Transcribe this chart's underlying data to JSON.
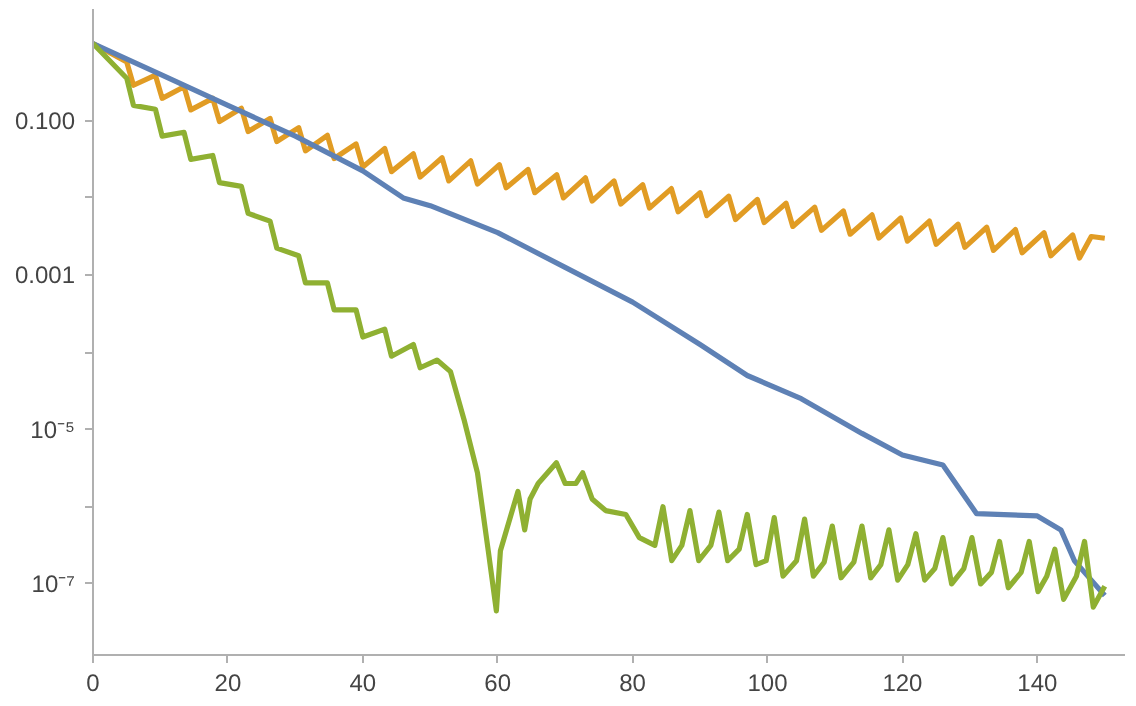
{
  "chart_data": {
    "type": "line",
    "log": "y",
    "xlim": [
      0,
      153
    ],
    "ylim": [
      1.2e-08,
      2.8
    ],
    "xticks": [
      0,
      20,
      40,
      60,
      80,
      100,
      120,
      140
    ],
    "yticks": [
      {
        "value": 0.1,
        "label": "0.100"
      },
      {
        "value": 0.01,
        "label": null
      },
      {
        "value": 0.001,
        "label": "0.001"
      },
      {
        "value": 0.0001,
        "label": null
      },
      {
        "value": 1e-05,
        "label": "10⁻⁵"
      },
      {
        "value": 1e-06,
        "label": null
      },
      {
        "value": 1e-07,
        "label": "10⁻⁷"
      }
    ],
    "grid": false,
    "marker": "none",
    "line_style": "solid",
    "series": [
      {
        "color": "#e19c24",
        "x": [
          0,
          5,
          6,
          9.25,
          10.25,
          13.5,
          14.5,
          17.75,
          18.75,
          22,
          23,
          26.25,
          27.25,
          30.5,
          31.5,
          34.75,
          35.75,
          39,
          40,
          43.25,
          44.25,
          47.5,
          48.5,
          51.75,
          52.75,
          56,
          57,
          60.25,
          61.25,
          64.5,
          65.5,
          68.75,
          69.75,
          73,
          74,
          77.25,
          78.25,
          81.5,
          82.5,
          85.75,
          86.75,
          90,
          91,
          94.25,
          95.25,
          98.5,
          99.5,
          102.75,
          103.75,
          107,
          108,
          111.25,
          112.25,
          115.5,
          116.5,
          119.75,
          120.75,
          124,
          125,
          128.25,
          129.25,
          132.5,
          133.5,
          136.75,
          137.75,
          141,
          142,
          145.25,
          146.25,
          148,
          150
        ],
        "values": [
          1,
          0.575,
          0.288,
          0.389,
          0.195,
          0.275,
          0.138,
          0.195,
          0.0977,
          0.145,
          0.0724,
          0.107,
          0.0537,
          0.0813,
          0.0407,
          0.0646,
          0.0324,
          0.0501,
          0.0251,
          0.0437,
          0.0219,
          0.0372,
          0.0186,
          0.0331,
          0.0166,
          0.0302,
          0.0151,
          0.0269,
          0.0135,
          0.0234,
          0.0117,
          0.02,
          0.01,
          0.0182,
          0.00912,
          0.0166,
          0.00832,
          0.0148,
          0.00741,
          0.0132,
          0.00661,
          0.0117,
          0.00589,
          0.0105,
          0.00525,
          0.00955,
          0.00479,
          0.00851,
          0.00427,
          0.00759,
          0.0038,
          0.00676,
          0.00339,
          0.00603,
          0.00302,
          0.0055,
          0.00275,
          0.00501,
          0.00251,
          0.00457,
          0.00229,
          0.00417,
          0.00209,
          0.00389,
          0.00195,
          0.00355,
          0.00178,
          0.00331,
          0.00166,
          0.00316,
          0.003
        ]
      },
      {
        "color": "#5e81b5",
        "x": [
          0,
          10,
          20,
          30,
          40,
          46,
          50,
          60,
          70,
          80,
          90,
          97,
          105,
          114,
          120,
          126,
          131,
          140,
          143.5,
          145.5,
          148,
          150
        ],
        "values": [
          1,
          0.398,
          0.158,
          0.0631,
          0.0224,
          0.01,
          0.00794,
          0.00355,
          0.00126,
          0.000447,
          0.000126,
          5.01e-05,
          2.51e-05,
          8.91e-06,
          4.68e-06,
          3.47e-06,
          8.13e-07,
          7.59e-07,
          5.01e-07,
          2e-07,
          1.12e-07,
          7.08e-08
        ]
      },
      {
        "color": "#8fb032",
        "x": [
          0,
          5,
          6,
          9.25,
          10.25,
          13.5,
          14.5,
          17.75,
          18.75,
          22,
          23,
          26.25,
          27.25,
          30.5,
          31.5,
          34.75,
          35.75,
          39,
          40,
          43.25,
          44.25,
          47.5,
          48.5,
          51,
          53,
          55,
          57,
          58.6,
          59.8,
          60.4,
          63,
          64,
          64.8,
          66,
          68.7,
          70,
          71.6,
          72.6,
          74,
          76,
          79,
          81,
          83.3,
          84.5,
          85.8,
          87.3,
          88.5,
          89.8,
          91.6,
          92.8,
          94.1,
          95.8,
          97,
          98.3,
          99.8,
          101,
          102.3,
          104.3,
          105.5,
          106.8,
          108.4,
          109.6,
          110.9,
          112.8,
          114,
          115.3,
          116.8,
          118,
          119.3,
          120.8,
          122,
          123.3,
          124.8,
          126,
          127.3,
          129.1,
          130.3,
          131.6,
          133.2,
          134.4,
          135.7,
          137.6,
          138.8,
          140.1,
          141.4,
          142.6,
          143.9,
          145.8,
          147,
          148.3,
          150
        ],
        "values": [
          1,
          0.355,
          0.158,
          0.141,
          0.0631,
          0.0708,
          0.0316,
          0.0355,
          0.0158,
          0.0141,
          0.00631,
          0.00501,
          0.00224,
          0.00178,
          0.000794,
          0.000794,
          0.000355,
          0.000355,
          0.000158,
          0.0002,
          8.91e-05,
          0.000126,
          6.31e-05,
          7.94e-05,
          5.62e-05,
          1.35e-05,
          2.75e-06,
          2.69e-07,
          4.47e-08,
          2.69e-07,
          1.58e-06,
          5.01e-07,
          1.26e-06,
          2e-06,
          3.72e-06,
          2e-06,
          2e-06,
          2.75e-06,
          1.26e-06,
          8.91e-07,
          7.94e-07,
          3.98e-07,
          3.16e-07,
          1e-06,
          2e-07,
          3.16e-07,
          8.91e-07,
          2e-07,
          3.16e-07,
          8.51e-07,
          2e-07,
          2.82e-07,
          7.94e-07,
          1.78e-07,
          2e-07,
          7.24e-07,
          1.26e-07,
          2e-07,
          6.92e-07,
          1.26e-07,
          1.91e-07,
          5.62e-07,
          1.2e-07,
          1.91e-07,
          5.62e-07,
          1.2e-07,
          1.78e-07,
          5.01e-07,
          1.12e-07,
          1.78e-07,
          4.47e-07,
          1.12e-07,
          1.58e-07,
          3.98e-07,
          1e-07,
          1.58e-07,
          3.98e-07,
          1e-07,
          1.41e-07,
          3.55e-07,
          8.91e-08,
          1.41e-07,
          3.55e-07,
          7.94e-08,
          1.26e-07,
          2.82e-07,
          6.31e-08,
          1.26e-07,
          3.55e-07,
          5.01e-08,
          9.33e-08
        ]
      }
    ]
  }
}
